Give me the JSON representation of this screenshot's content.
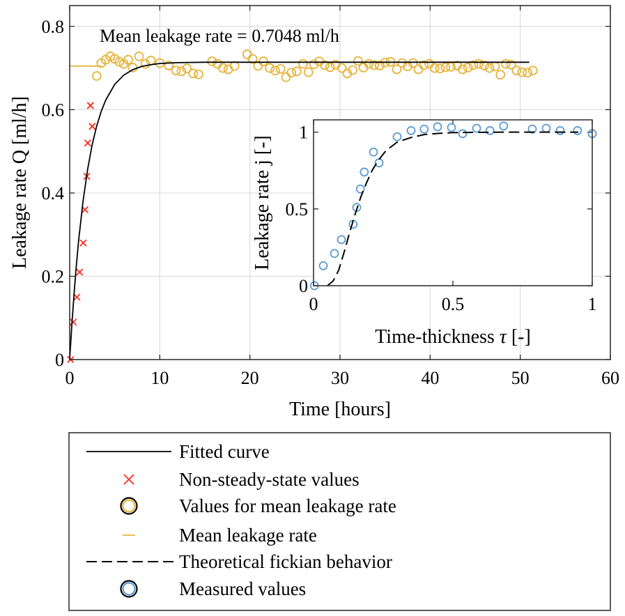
{
  "chart_data": [
    {
      "type": "scatter",
      "xlabel": "Time [hours]",
      "ylabel": "Leakage rate Q [ml/h]",
      "xlim": [
        0,
        60
      ],
      "ylim": [
        0,
        0.85
      ],
      "xticks": [
        0,
        10,
        20,
        30,
        40,
        50,
        60
      ],
      "yticks": [
        0,
        0.2,
        0.4,
        0.6,
        0.8
      ],
      "xtick_labels": [
        "0",
        "10",
        "20",
        "30",
        "40",
        "50",
        "60"
      ],
      "ytick_labels": [
        "0",
        "0.2",
        "0.4",
        "0.6",
        "0.8"
      ],
      "grid": true,
      "annotation": "Mean leakage rate = 0.7048 ml/h",
      "series": [
        {
          "name": "Non-steady-state values",
          "marker": "x",
          "color": "#ff2a1a",
          "x": [
            0.1,
            0.4,
            0.8,
            1.1,
            1.5,
            1.7,
            1.9,
            2.0,
            2.3,
            2.5
          ],
          "y": [
            0.0,
            0.09,
            0.15,
            0.21,
            0.28,
            0.36,
            0.44,
            0.52,
            0.61,
            0.56
          ]
        },
        {
          "name": "Values for mean leakage rate",
          "marker": "circle",
          "color": "#e6b43c",
          "x": [
            3.0,
            3.5,
            4.0,
            4.5,
            5.0,
            5.5,
            6.0,
            6.5,
            7.0,
            7.7,
            8.4,
            9.0,
            10.0,
            11.0,
            11.8,
            12.4,
            13.0,
            13.7,
            14.3,
            15.8,
            16.4,
            17.0,
            17.6,
            18.3,
            19.7,
            20.3,
            20.9,
            21.5,
            22.2,
            22.8,
            23.4,
            24.0,
            24.6,
            25.2,
            25.9,
            26.5,
            27.1,
            27.7,
            28.3,
            28.9,
            29.5,
            30.2,
            30.8,
            31.4,
            32.0,
            32.6,
            33.2,
            33.8,
            34.4,
            35.0,
            35.6,
            36.3,
            36.9,
            37.5,
            38.1,
            38.7,
            39.3,
            39.9,
            40.5,
            41.1,
            41.7,
            42.3,
            43.0,
            43.6,
            44.2,
            44.8,
            45.4,
            46.0,
            46.6,
            47.2,
            47.8,
            48.4,
            49.0,
            49.6,
            50.2,
            50.8,
            51.4
          ],
          "y": [
            0.681,
            0.712,
            0.72,
            0.728,
            0.722,
            0.715,
            0.71,
            0.72,
            0.701,
            0.728,
            0.71,
            0.718,
            0.712,
            0.706,
            0.694,
            0.692,
            0.699,
            0.687,
            0.685,
            0.716,
            0.71,
            0.7,
            0.697,
            0.705,
            0.733,
            0.722,
            0.705,
            0.716,
            0.7,
            0.694,
            0.698,
            0.678,
            0.689,
            0.692,
            0.71,
            0.69,
            0.709,
            0.716,
            0.707,
            0.702,
            0.708,
            0.7,
            0.687,
            0.695,
            0.717,
            0.701,
            0.71,
            0.707,
            0.706,
            0.713,
            0.715,
            0.697,
            0.712,
            0.704,
            0.712,
            0.697,
            0.707,
            0.71,
            0.7,
            0.699,
            0.702,
            0.703,
            0.706,
            0.697,
            0.701,
            0.707,
            0.71,
            0.706,
            0.7,
            0.704,
            0.684,
            0.71,
            0.708,
            0.694,
            0.69,
            0.689,
            0.694
          ]
        },
        {
          "name": "Fitted curve",
          "type": "line",
          "color": "#000000",
          "style": "solid",
          "x": [
            0,
            0.25,
            0.5,
            0.75,
            1.0,
            1.5,
            2.0,
            2.5,
            3.0,
            3.5,
            4.0,
            5.0,
            6.0,
            7.0,
            8.0,
            9.0,
            10.0,
            12.0,
            15.0,
            20.0,
            30.0,
            40.0,
            51.0
          ],
          "y": [
            0.0,
            0.086,
            0.162,
            0.228,
            0.287,
            0.383,
            0.458,
            0.516,
            0.561,
            0.596,
            0.623,
            0.661,
            0.683,
            0.696,
            0.704,
            0.708,
            0.711,
            0.713,
            0.714,
            0.714,
            0.714,
            0.714,
            0.714
          ]
        },
        {
          "name": "Mean leakage rate",
          "type": "line",
          "color": "#e6b43c",
          "style": "solid",
          "x": [
            0,
            3.5
          ],
          "y": [
            0.7048,
            0.7048
          ]
        }
      ]
    },
    {
      "type": "scatter",
      "inset": true,
      "xlabel": "Time-thickness",
      "xlabel_symbol": "τ",
      "xlabel_unit": "[-]",
      "ylabel": "Leakage rate j [-]",
      "xlim": [
        0,
        1
      ],
      "ylim": [
        0,
        1.08
      ],
      "xticks": [
        0,
        0.5,
        1
      ],
      "yticks": [
        0,
        0.5,
        1
      ],
      "xtick_labels": [
        "0",
        "0.5",
        "1"
      ],
      "ytick_labels": [
        "0",
        "0.5",
        "1"
      ],
      "grid": false,
      "series": [
        {
          "name": "Measured values",
          "marker": "circle",
          "color": "#5b9bd5",
          "x": [
            0.003,
            0.035,
            0.075,
            0.1,
            0.142,
            0.155,
            0.168,
            0.182,
            0.215,
            0.235,
            0.3,
            0.35,
            0.397,
            0.445,
            0.495,
            0.535,
            0.585,
            0.633,
            0.682,
            0.785,
            0.835,
            0.885,
            0.947,
            1.0
          ],
          "y": [
            0.0,
            0.13,
            0.21,
            0.3,
            0.4,
            0.51,
            0.63,
            0.74,
            0.87,
            0.8,
            0.97,
            1.01,
            1.02,
            1.035,
            1.03,
            0.99,
            1.025,
            1.01,
            1.04,
            1.02,
            1.025,
            1.01,
            1.01,
            0.99
          ]
        },
        {
          "name": "Theoretical fickian behavior",
          "type": "line",
          "color": "#000000",
          "style": "dashed",
          "x": [
            0.05,
            0.07,
            0.09,
            0.11,
            0.13,
            0.15,
            0.17,
            0.19,
            0.21,
            0.23,
            0.26,
            0.3,
            0.35,
            0.4,
            0.45,
            0.5,
            0.6,
            0.7,
            0.8,
            0.9,
            0.95
          ],
          "y": [
            0.0,
            0.03,
            0.1,
            0.22,
            0.35,
            0.47,
            0.58,
            0.67,
            0.75,
            0.81,
            0.88,
            0.935,
            0.965,
            0.985,
            0.992,
            0.997,
            0.999,
            1.0,
            1.0,
            1.0,
            1.0
          ]
        }
      ]
    }
  ],
  "legend": {
    "placement": "below",
    "entries": [
      {
        "label": "Fitted curve",
        "symbol": "line",
        "color": "#000000"
      },
      {
        "label": "Non-steady-state values",
        "symbol": "x",
        "color": "#ff2a1a"
      },
      {
        "label": "Values for mean leakage rate",
        "symbol": "circle",
        "color": "#e6b43c"
      },
      {
        "label": "Mean leakage rate",
        "symbol": "short-line",
        "color": "#e6b43c"
      },
      {
        "label": "Theoretical fickian behavior",
        "symbol": "dashed-line",
        "color": "#000000"
      },
      {
        "label": "Measured values",
        "symbol": "circle",
        "color": "#5b9bd5"
      }
    ]
  }
}
